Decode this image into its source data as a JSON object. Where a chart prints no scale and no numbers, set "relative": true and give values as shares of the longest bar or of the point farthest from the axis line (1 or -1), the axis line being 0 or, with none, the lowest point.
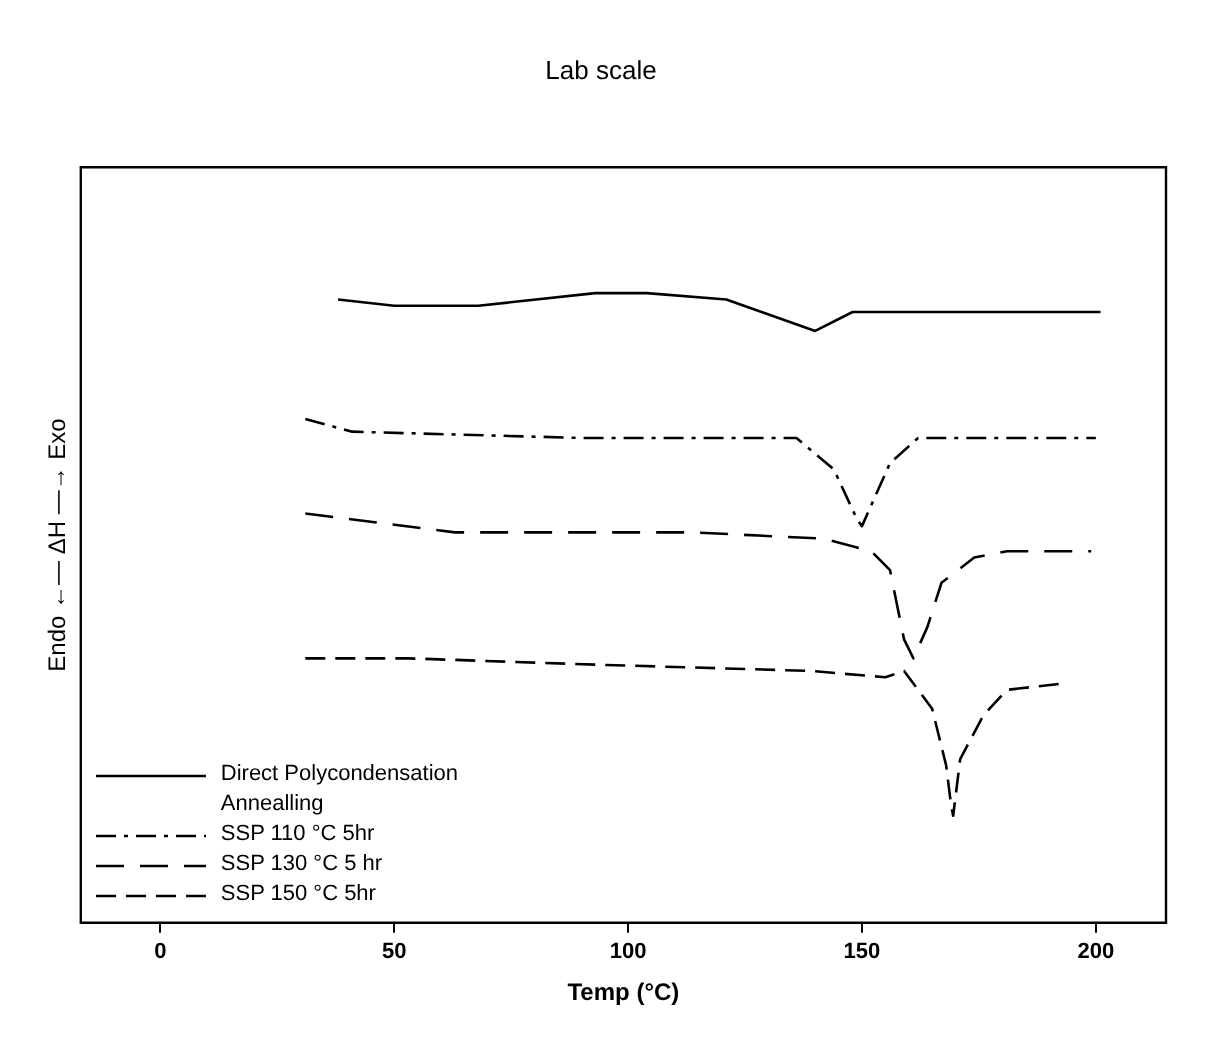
{
  "chart_data": {
    "type": "line",
    "title": "Lab scale",
    "xlabel": "Temp (°C)",
    "ylabel": "Endo ←— ΔH —→ Exo",
    "relative": true,
    "xlim": [
      -17,
      215
    ],
    "xticks": [
      0,
      50,
      100,
      150,
      200
    ],
    "grid": false,
    "legend": "bottom left",
    "marker": "none",
    "annotations": [
      "Annealling"
    ],
    "series": [
      {
        "name": "Direct Polycondensation",
        "color": "#000000",
        "line_style": "solid",
        "x": [
          38,
          50,
          68,
          93,
          104,
          121,
          140,
          148,
          165,
          201
        ],
        "values": [
          0.99,
          0.98,
          0.98,
          1.0,
          1.0,
          0.99,
          0.94,
          0.97,
          0.97,
          0.97
        ]
      },
      {
        "name": "SSP 110 °C 5hr",
        "color": "#000000",
        "line_style": "dashed",
        "x": [
          31,
          41,
          90,
          136,
          144,
          149,
          150,
          156,
          162,
          180,
          200
        ],
        "values": [
          0.8,
          0.78,
          0.77,
          0.77,
          0.72,
          0.64,
          0.63,
          0.73,
          0.77,
          0.77,
          0.77
        ]
      },
      {
        "name": "SSP 130 °C 5 hr",
        "color": "#000000",
        "line_style": "dashed",
        "x": [
          31,
          63,
          114,
          142,
          152,
          156,
          159,
          161,
          164,
          167,
          174,
          181,
          199
        ],
        "values": [
          0.65,
          0.62,
          0.62,
          0.61,
          0.59,
          0.56,
          0.45,
          0.42,
          0.47,
          0.54,
          0.58,
          0.59,
          0.59
        ]
      },
      {
        "name": "SSP 150 °C 5hr",
        "color": "#000000",
        "line_style": "dashed",
        "x": [
          31,
          53,
          93,
          139,
          155,
          159,
          165,
          168,
          169,
          169.5,
          171,
          176,
          181,
          193
        ],
        "values": [
          0.42,
          0.42,
          0.41,
          0.4,
          0.39,
          0.4,
          0.34,
          0.25,
          0.19,
          0.17,
          0.26,
          0.33,
          0.37,
          0.38
        ]
      }
    ]
  }
}
